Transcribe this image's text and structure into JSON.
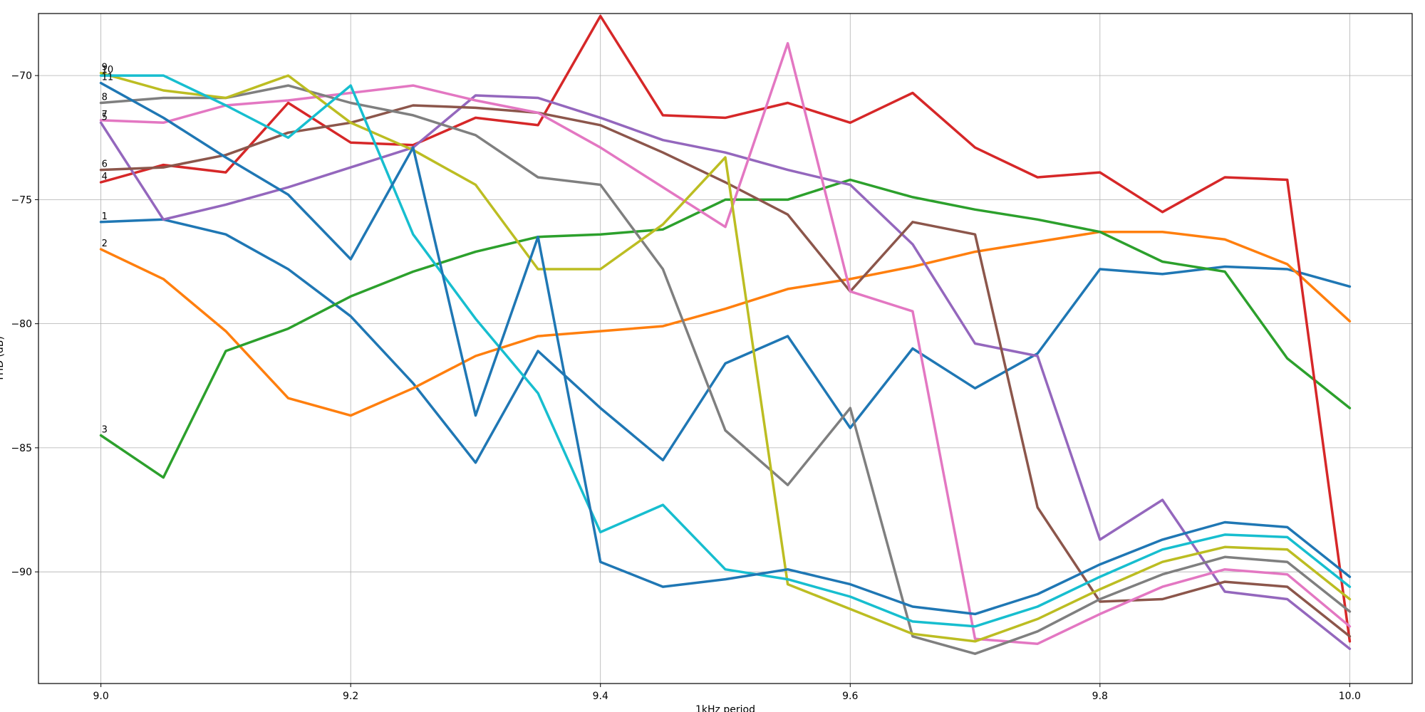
{
  "chart_data": {
    "type": "line",
    "title": "",
    "xlabel": "1kHz period",
    "ylabel": "THD (dB)",
    "xlim": [
      8.95,
      10.05
    ],
    "ylim": [
      -94.5,
      -67.5
    ],
    "grid": true,
    "x_ticks": [
      9.0,
      9.2,
      9.4,
      9.6,
      9.8,
      10.0
    ],
    "x_tick_labels": [
      "9.0",
      "9.2",
      "9.4",
      "9.6",
      "9.8",
      "10.0"
    ],
    "y_ticks": [
      -70,
      -75,
      -80,
      -85,
      -90
    ],
    "y_tick_labels": [
      "−70",
      "−75",
      "−80",
      "−85",
      "−90"
    ],
    "x": [
      9.0,
      9.05,
      9.1,
      9.15,
      9.2,
      9.25,
      9.3,
      9.35,
      9.4,
      9.45,
      9.5,
      9.55,
      9.6,
      9.65,
      9.7,
      9.75,
      9.8,
      9.85,
      9.9,
      9.95,
      10.0
    ],
    "series": [
      {
        "label": "1",
        "color": "#1f77b4",
        "values": [
          -75.9,
          -75.8,
          -76.4,
          -77.8,
          -79.7,
          -82.4,
          -85.6,
          -81.1,
          -83.4,
          -85.5,
          -81.6,
          -80.5,
          -84.2,
          -81.0,
          -82.6,
          -81.2,
          -77.8,
          -78.0,
          -77.7,
          -77.8,
          -78.5
        ]
      },
      {
        "label": "2",
        "color": "#ff7f0e",
        "values": [
          -77.0,
          -78.2,
          -80.3,
          -83.0,
          -83.7,
          -82.6,
          -81.3,
          -80.5,
          -80.3,
          -80.1,
          -79.4,
          -78.6,
          -78.2,
          -77.7,
          -77.1,
          -76.7,
          -76.3,
          -76.3,
          -76.6,
          -77.6,
          -79.9
        ]
      },
      {
        "label": "3",
        "color": "#2ca02c",
        "values": [
          -84.5,
          -86.2,
          -81.1,
          -80.2,
          -78.9,
          -77.9,
          -77.1,
          -76.5,
          -76.4,
          -76.2,
          -75.0,
          -75.0,
          -74.2,
          -74.9,
          -75.4,
          -75.8,
          -76.3,
          -77.5,
          -77.9,
          -81.4,
          -83.4
        ]
      },
      {
        "label": "4",
        "color": "#d62728",
        "values": [
          -74.3,
          -73.6,
          -73.9,
          -71.1,
          -72.7,
          -72.8,
          -71.7,
          -72.0,
          -67.6,
          -71.6,
          -71.7,
          -71.1,
          -71.9,
          -70.7,
          -72.9,
          -74.1,
          -73.9,
          -75.5,
          -74.1,
          -74.2,
          -92.8
        ]
      },
      {
        "label": "5",
        "color": "#9467bd",
        "values": [
          -71.9,
          -75.8,
          -75.2,
          -74.5,
          -73.7,
          -72.9,
          -70.8,
          -70.9,
          -71.7,
          -72.6,
          -73.1,
          -73.8,
          -74.4,
          -76.8,
          -80.8,
          -81.3,
          -88.7,
          -87.1,
          -90.8,
          -91.1,
          -93.1
        ]
      },
      {
        "label": "6",
        "color": "#8c564b",
        "values": [
          -73.8,
          -73.7,
          -73.2,
          -72.3,
          -71.9,
          -71.2,
          -71.3,
          -71.5,
          -72.0,
          -73.1,
          -74.3,
          -75.6,
          -78.7,
          -75.9,
          -76.4,
          -87.4,
          -91.2,
          -91.1,
          -90.4,
          -90.6,
          -92.6
        ]
      },
      {
        "label": "7",
        "color": "#e377c2",
        "values": [
          -71.8,
          -71.9,
          -71.2,
          -71.0,
          -70.7,
          -70.4,
          -71.0,
          -71.5,
          -72.9,
          -74.5,
          -76.1,
          -68.7,
          -78.7,
          -79.5,
          -92.7,
          -92.9,
          -91.7,
          -90.6,
          -89.9,
          -90.1,
          -92.2
        ]
      },
      {
        "label": "8",
        "color": "#7f7f7f",
        "values": [
          -71.1,
          -70.9,
          -70.9,
          -70.4,
          -71.1,
          -71.6,
          -72.4,
          -74.1,
          -74.4,
          -77.8,
          -84.3,
          -86.5,
          -83.4,
          -92.6,
          -93.3,
          -92.4,
          -91.1,
          -90.1,
          -89.4,
          -89.6,
          -91.6
        ]
      },
      {
        "label": "9",
        "color": "#bcbd22",
        "values": [
          -69.9,
          -70.6,
          -70.9,
          -70.0,
          -71.9,
          -73.0,
          -74.4,
          -77.8,
          -77.8,
          -76.0,
          -73.3,
          -90.5,
          -91.5,
          -92.5,
          -92.8,
          -91.9,
          -90.7,
          -89.6,
          -89.0,
          -89.1,
          -91.1
        ]
      },
      {
        "label": "10",
        "color": "#17becf",
        "values": [
          -70.0,
          -70.0,
          -71.2,
          -72.5,
          -70.4,
          -76.4,
          -79.8,
          -82.8,
          -88.4,
          -87.3,
          -89.9,
          -90.3,
          -91.0,
          -92.0,
          -92.2,
          -91.4,
          -90.2,
          -89.1,
          -88.5,
          -88.6,
          -90.6
        ]
      },
      {
        "label": "11",
        "color": "#1f77b4",
        "values": [
          -70.3,
          -71.7,
          -73.3,
          -74.8,
          -77.4,
          -72.9,
          -83.7,
          -76.5,
          -89.6,
          -90.6,
          -90.3,
          -89.9,
          -90.5,
          -91.4,
          -91.7,
          -90.9,
          -89.7,
          -88.7,
          -88.0,
          -88.2,
          -90.2
        ]
      }
    ]
  }
}
